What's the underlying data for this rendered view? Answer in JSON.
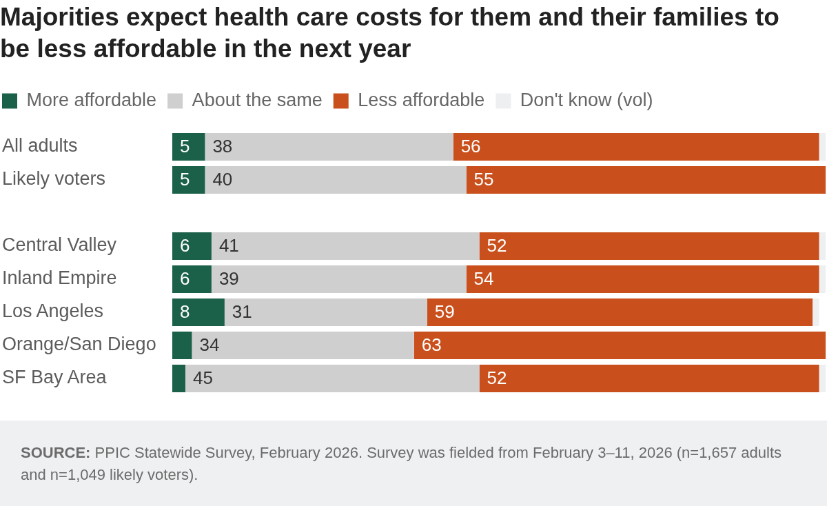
{
  "chart_data": {
    "type": "bar",
    "orientation": "horizontal",
    "stacked": true,
    "title": "Majorities expect health care costs for them and their families to be less affordable in the next year",
    "categories": [
      "All adults",
      "Likely voters",
      null,
      "Central Valley",
      "Inland Empire",
      "Los Angeles",
      "Orange/San Diego",
      "SF Bay Area"
    ],
    "series": [
      {
        "name": "More affordable",
        "color": "#1b6048",
        "values": [
          5,
          5,
          null,
          6,
          6,
          8,
          3,
          2
        ],
        "value_labels": [
          "5",
          "5",
          null,
          "6",
          "6",
          "8",
          null,
          null
        ]
      },
      {
        "name": "About the same",
        "color": "#cfcfcf",
        "values": [
          38,
          40,
          null,
          41,
          39,
          31,
          34,
          45
        ],
        "value_labels": [
          "38",
          "40",
          null,
          "41",
          "39",
          "31",
          "34",
          "45"
        ]
      },
      {
        "name": "Less affordable",
        "color": "#c9501c",
        "values": [
          56,
          55,
          null,
          52,
          54,
          59,
          63,
          52
        ],
        "value_labels": [
          "56",
          "55",
          null,
          "52",
          "54",
          "59",
          "63",
          "52"
        ]
      },
      {
        "name": "Don't know (vol)",
        "color": "#eeeff1",
        "values": [
          1,
          0,
          null,
          1,
          1,
          1,
          0,
          1
        ]
      }
    ],
    "xlim": [
      0,
      100
    ],
    "legend": "top left",
    "tick_labels": "y",
    "annotations": [
      "SOURCE: PPIC Statewide Survey, February 2026. Survey was fielded from February 3–11, 2026 (n=1,657 adults and n=1,049 likely voters)."
    ]
  }
}
